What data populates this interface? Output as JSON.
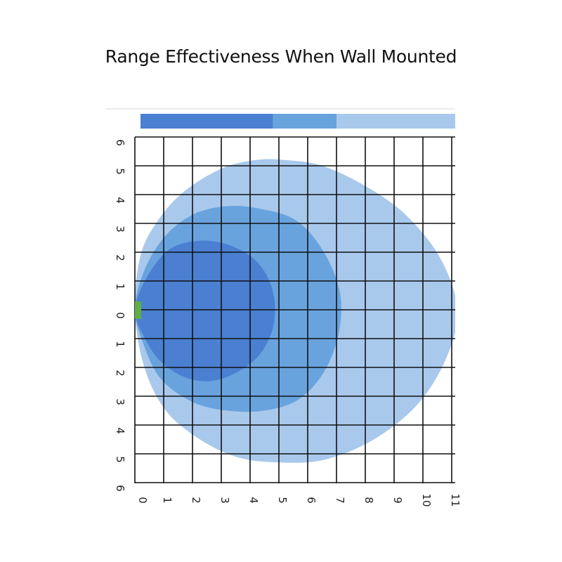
{
  "title": "Range Effectiveness When Wall Mounted",
  "colors": {
    "zone_high": "#4a7fd1",
    "zone_mid": "#69a3de",
    "zone_low": "#a9c9ec",
    "sensor": "#5fae46",
    "grid": "#111111",
    "legend_band_border": "#d9d9d9"
  },
  "chart_data": {
    "type": "area",
    "title": "Range Effectiveness When Wall Mounted",
    "xlabel": "",
    "ylabel": "",
    "x_ticks": [
      "0",
      "1",
      "2",
      "3",
      "4",
      "5",
      "6",
      "7",
      "8",
      "9",
      "10",
      "11"
    ],
    "y_ticks": [
      "6",
      "5",
      "4",
      "3",
      "2",
      "1",
      "0",
      "1",
      "2",
      "3",
      "4",
      "5",
      "6"
    ],
    "xlim": [
      0,
      11
    ],
    "ylim": [
      -6,
      6
    ],
    "grid": true,
    "legend": "top color band, no text",
    "legend_band": [
      {
        "from": 0,
        "to": 4.8,
        "color_key": "zone_high"
      },
      {
        "from": 4.8,
        "to": 7.0,
        "color_key": "zone_mid"
      },
      {
        "from": 7.0,
        "to": 11.2,
        "color_key": "zone_low"
      }
    ],
    "sensor_position": {
      "x": 0,
      "y": 0
    },
    "series": [
      {
        "color_key": "zone_low",
        "points": [
          [
            0,
            0
          ],
          [
            0.2,
            1.9
          ],
          [
            0.8,
            3.1
          ],
          [
            1.7,
            4.1
          ],
          [
            3.0,
            4.9
          ],
          [
            4.2,
            5.2
          ],
          [
            5.2,
            5.2
          ],
          [
            6.5,
            5.0
          ],
          [
            8.0,
            4.3
          ],
          [
            9.4,
            3.3
          ],
          [
            10.6,
            1.8
          ],
          [
            11.2,
            0
          ],
          [
            10.8,
            -1.7
          ],
          [
            9.8,
            -3.3
          ],
          [
            8.3,
            -4.5
          ],
          [
            6.6,
            -5.2
          ],
          [
            5.0,
            -5.3
          ],
          [
            3.5,
            -5.1
          ],
          [
            2.1,
            -4.4
          ],
          [
            1.0,
            -3.4
          ],
          [
            0.3,
            -1.9
          ]
        ]
      },
      {
        "color_key": "zone_mid",
        "points": [
          [
            0,
            0
          ],
          [
            0.3,
            1.3
          ],
          [
            1.0,
            2.5
          ],
          [
            2.0,
            3.3
          ],
          [
            3.2,
            3.6
          ],
          [
            4.4,
            3.5
          ],
          [
            5.6,
            3.1
          ],
          [
            6.5,
            2.1
          ],
          [
            7.1,
            0.7
          ],
          [
            7.1,
            -0.7
          ],
          [
            6.6,
            -2.1
          ],
          [
            5.7,
            -3.1
          ],
          [
            4.5,
            -3.5
          ],
          [
            3.2,
            -3.5
          ],
          [
            2.0,
            -3.2
          ],
          [
            0.9,
            -2.4
          ],
          [
            0.3,
            -1.2
          ]
        ]
      },
      {
        "color_key": "zone_high",
        "points": [
          [
            0,
            0
          ],
          [
            0.4,
            1.1
          ],
          [
            1.2,
            2.1
          ],
          [
            2.3,
            2.4
          ],
          [
            3.4,
            2.2
          ],
          [
            4.3,
            1.6
          ],
          [
            4.8,
            0.6
          ],
          [
            4.8,
            -0.6
          ],
          [
            4.2,
            -1.7
          ],
          [
            3.0,
            -2.4
          ],
          [
            1.9,
            -2.4
          ],
          [
            0.9,
            -1.8
          ],
          [
            0.3,
            -0.9
          ]
        ]
      }
    ]
  }
}
